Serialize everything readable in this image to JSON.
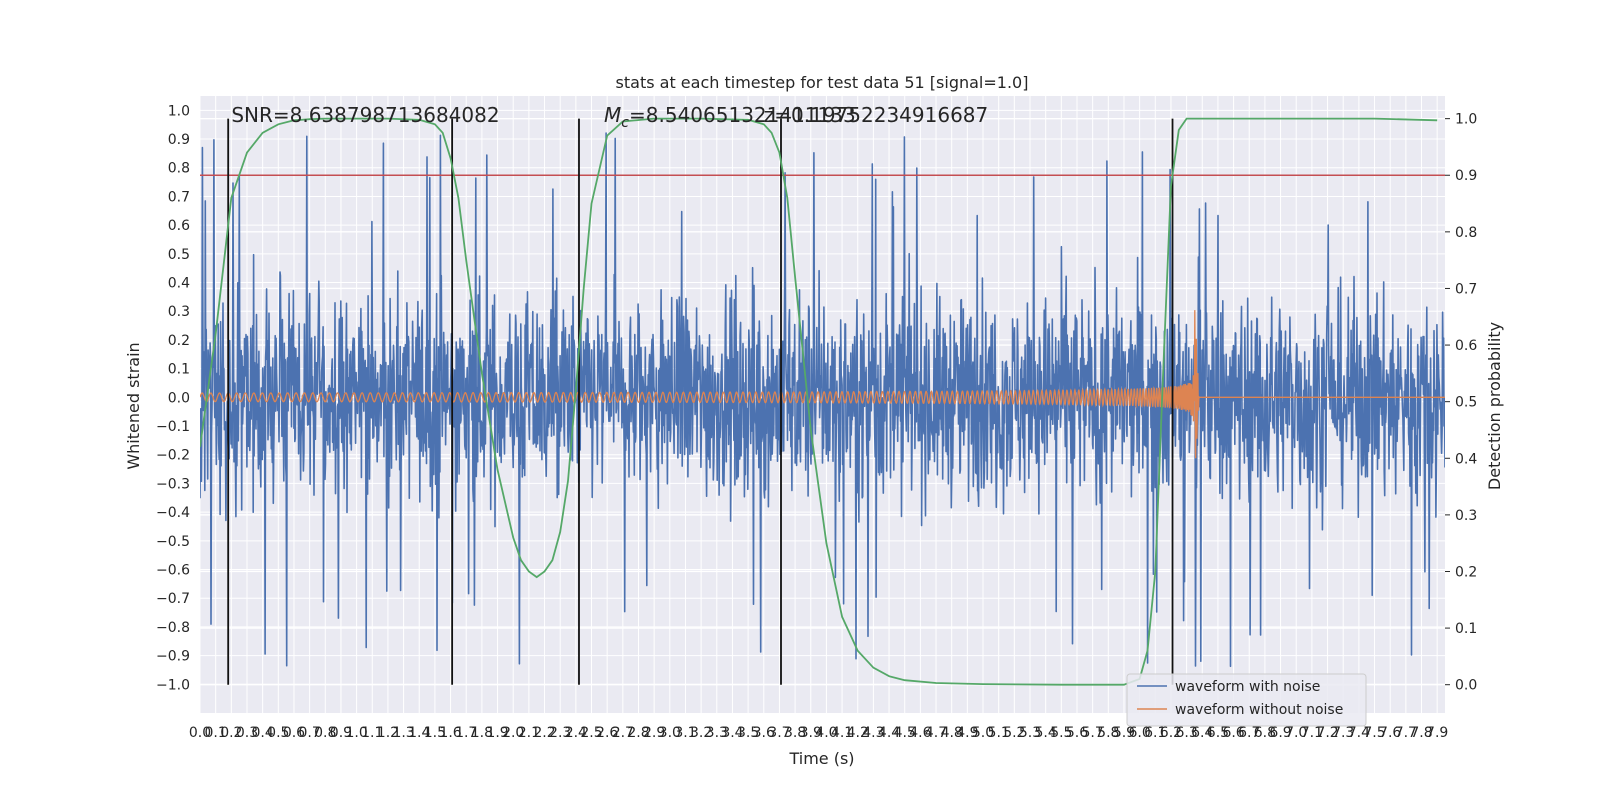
{
  "chart_data": {
    "type": "line",
    "title": "stats at each timestep for test data 51 [signal=1.0]",
    "xlabel": "Time (s)",
    "ylabel": "Whitened strain",
    "ylabel_right": "Detection probability",
    "xlim": [
      0.0,
      7.95
    ],
    "ylim": [
      -1.1,
      1.05
    ],
    "ylim_right": [
      -0.05,
      1.04
    ],
    "grid": true,
    "legend_placement": "lower-right",
    "x_tick_step": 0.1,
    "y_ticks": [
      "1.0",
      "0.9",
      "0.8",
      "0.7",
      "0.6",
      "0.5",
      "0.4",
      "0.3",
      "0.2",
      "0.1",
      "0.0",
      "-0.1",
      "-0.2",
      "-0.3",
      "-0.4",
      "-0.5",
      "-0.6",
      "-0.7",
      "-0.8",
      "-0.9",
      "-1.0"
    ],
    "y_ticks_right": [
      "1.0",
      "0.9",
      "0.8",
      "0.7",
      "0.6",
      "0.5",
      "0.4",
      "0.3",
      "0.2",
      "0.1",
      "0.0"
    ],
    "annotations": [
      {
        "text": "SNR=8.638798713684082",
        "x": 0.2,
        "y": 0.96
      },
      {
        "text": "M",
        "sub": "c",
        "text_after": "=8.540651321411133",
        "x": 2.58,
        "y": 0.96
      },
      {
        "text": "z=0.19752234916687",
        "x": 3.6,
        "y": 0.96
      }
    ],
    "vertical_lines_s": [
      0.18,
      1.61,
      2.42,
      3.71,
      6.21
    ],
    "threshold_right": 0.9,
    "series": [
      {
        "name": "waveform with noise",
        "color": "#4c72b0",
        "axis": "left",
        "kind": "noise",
        "envelope_typical": 0.45,
        "peak_max": 0.95,
        "peak_min": -0.98
      },
      {
        "name": "waveform without noise",
        "color": "#dd8452",
        "axis": "left",
        "kind": "chirp",
        "amplitude_start": 0.015,
        "amplitude_peak": 0.34,
        "merger_time": 6.35,
        "ringdown_end": 6.38
      },
      {
        "color": "#55a868",
        "axis": "right",
        "kind": "detection_probability",
        "x": [
          0.0,
          0.1,
          0.2,
          0.3,
          0.4,
          0.5,
          0.6,
          0.7,
          0.8,
          0.9,
          1.0,
          1.2,
          1.4,
          1.5,
          1.55,
          1.6,
          1.65,
          1.7,
          1.8,
          1.9,
          2.0,
          2.05,
          2.1,
          2.15,
          2.2,
          2.25,
          2.3,
          2.35,
          2.4,
          2.45,
          2.5,
          2.6,
          2.7,
          2.9,
          3.2,
          3.5,
          3.6,
          3.65,
          3.7,
          3.75,
          3.8,
          3.9,
          4.0,
          4.1,
          4.2,
          4.3,
          4.4,
          4.5,
          4.7,
          5.0,
          5.5,
          5.9,
          6.0,
          6.05,
          6.1,
          6.15,
          6.2,
          6.25,
          6.3,
          6.5,
          7.0,
          7.5,
          7.9
        ],
        "y": [
          0.42,
          0.62,
          0.86,
          0.94,
          0.975,
          0.99,
          0.997,
          0.999,
          1.0,
          1.0,
          1.0,
          1.0,
          0.998,
          0.99,
          0.975,
          0.93,
          0.86,
          0.75,
          0.55,
          0.38,
          0.26,
          0.22,
          0.2,
          0.19,
          0.2,
          0.22,
          0.27,
          0.36,
          0.52,
          0.7,
          0.85,
          0.97,
          0.995,
          1.0,
          1.0,
          0.998,
          0.99,
          0.975,
          0.94,
          0.86,
          0.72,
          0.45,
          0.25,
          0.12,
          0.06,
          0.03,
          0.015,
          0.008,
          0.003,
          0.001,
          0.0,
          0.0,
          0.01,
          0.06,
          0.2,
          0.55,
          0.88,
          0.98,
          1.0,
          1.0,
          1.0,
          1.0,
          0.997
        ]
      }
    ]
  }
}
